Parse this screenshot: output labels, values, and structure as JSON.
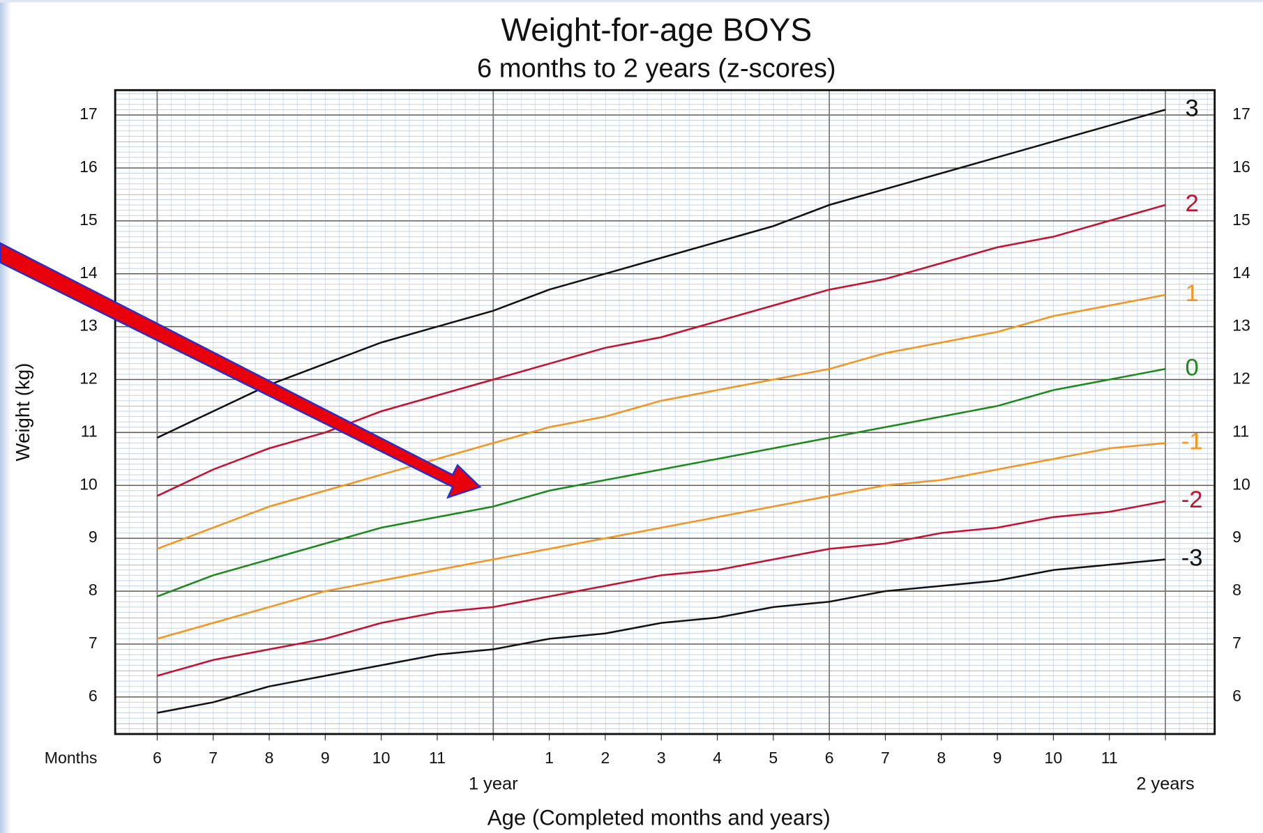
{
  "chart_data": {
    "type": "line",
    "title": "Weight-for-age  BOYS",
    "subtitle": "6 months to 2 years (z-scores)",
    "ylabel": "Weight (kg)",
    "xlabel": "Age (Completed months and years)",
    "months_label": "Months",
    "x": [
      6,
      7,
      8,
      9,
      10,
      11,
      12,
      13,
      14,
      15,
      16,
      17,
      18,
      19,
      20,
      21,
      22,
      23,
      24
    ],
    "series": [
      {
        "name": "3",
        "color": "#111111",
        "values": [
          10.9,
          11.4,
          11.9,
          12.3,
          12.7,
          13.0,
          13.3,
          13.7,
          14.0,
          14.3,
          14.6,
          14.9,
          15.3,
          15.6,
          15.9,
          16.2,
          16.5,
          16.8,
          17.1
        ]
      },
      {
        "name": "2",
        "color": "#c8102e",
        "values": [
          9.8,
          10.3,
          10.7,
          11.0,
          11.4,
          11.7,
          12.0,
          12.3,
          12.6,
          12.8,
          13.1,
          13.4,
          13.7,
          13.9,
          14.2,
          14.5,
          14.7,
          15.0,
          15.3
        ]
      },
      {
        "name": "1",
        "color": "#f7941d",
        "values": [
          8.8,
          9.2,
          9.6,
          9.9,
          10.2,
          10.5,
          10.8,
          11.1,
          11.3,
          11.6,
          11.8,
          12.0,
          12.2,
          12.5,
          12.7,
          12.9,
          13.2,
          13.4,
          13.6
        ]
      },
      {
        "name": "0",
        "color": "#1b8a1b",
        "values": [
          7.9,
          8.3,
          8.6,
          8.9,
          9.2,
          9.4,
          9.6,
          9.9,
          10.1,
          10.3,
          10.5,
          10.7,
          10.9,
          11.1,
          11.3,
          11.5,
          11.8,
          12.0,
          12.2
        ]
      },
      {
        "name": "-1",
        "color": "#f7941d",
        "values": [
          7.1,
          7.4,
          7.7,
          8.0,
          8.2,
          8.4,
          8.6,
          8.8,
          9.0,
          9.2,
          9.4,
          9.6,
          9.8,
          10.0,
          10.1,
          10.3,
          10.5,
          10.7,
          10.8
        ]
      },
      {
        "name": "-2",
        "color": "#c8102e",
        "values": [
          6.4,
          6.7,
          6.9,
          7.1,
          7.4,
          7.6,
          7.7,
          7.9,
          8.1,
          8.3,
          8.4,
          8.6,
          8.8,
          8.9,
          9.1,
          9.2,
          9.4,
          9.5,
          9.7
        ]
      },
      {
        "name": "-3",
        "color": "#111111",
        "values": [
          5.7,
          5.9,
          6.2,
          6.4,
          6.6,
          6.8,
          6.9,
          7.1,
          7.2,
          7.4,
          7.5,
          7.7,
          7.8,
          8.0,
          8.1,
          8.2,
          8.4,
          8.5,
          8.6
        ]
      }
    ],
    "xlim": [
      5.25,
      24.88
    ],
    "ylim": [
      5.3,
      17.47
    ],
    "xticks": [
      6,
      7,
      8,
      9,
      10,
      11,
      {
        "value": 13,
        "label": "1"
      },
      {
        "value": 14,
        "label": "2"
      },
      {
        "value": 15,
        "label": "3"
      },
      {
        "value": 16,
        "label": "4"
      },
      {
        "value": 17,
        "label": "5"
      },
      {
        "value": 18,
        "label": "6"
      },
      {
        "value": 19,
        "label": "7"
      },
      {
        "value": 20,
        "label": "8"
      },
      {
        "value": 21,
        "label": "9"
      },
      {
        "value": 22,
        "label": "10"
      },
      {
        "value": 23,
        "label": "11"
      }
    ],
    "year_ticks": [
      {
        "value": 12,
        "label": "1 year"
      },
      {
        "value": 24,
        "label": "2 years"
      }
    ],
    "x_major_grid": [
      6,
      12,
      18,
      24
    ],
    "yticks": [
      6,
      7,
      8,
      9,
      10,
      11,
      12,
      13,
      14,
      15,
      16,
      17
    ],
    "grid": true
  }
}
